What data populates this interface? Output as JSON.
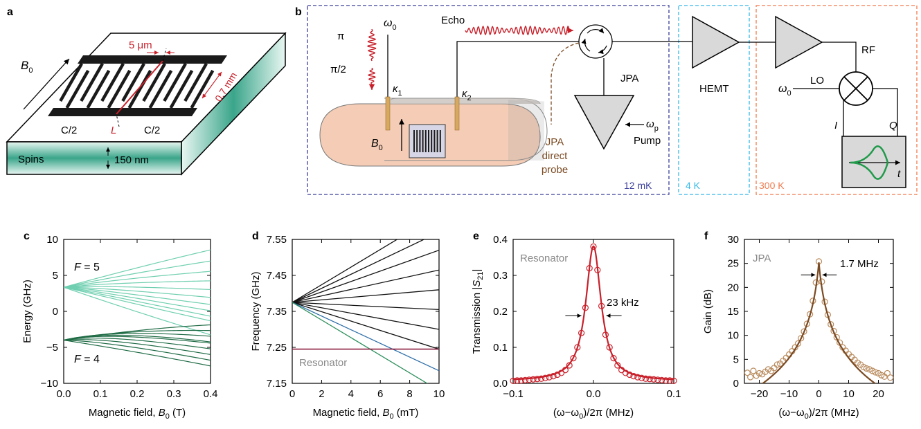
{
  "panels": {
    "a": {
      "letter": "a",
      "b0": "B",
      "b0_sub": "0",
      "gap": "5 μm",
      "length": "0.7 mm",
      "c_left": "C/2",
      "c_right": "C/2",
      "inductor": "L",
      "spins": "Spins",
      "thickness": "150 nm"
    },
    "b": {
      "letter": "b",
      "omega0": "ω",
      "omega0_sub": "0",
      "pi": "π",
      "pi_half": "π/2",
      "echo": "Echo",
      "kappa1": "κ",
      "kappa1_sub": "1",
      "kappa2": "κ",
      "kappa2_sub": "2",
      "b0": "B",
      "b0_sub": "0",
      "jpa": "JPA",
      "omega_p": "ω",
      "omega_p_sub": "p",
      "pump": "Pump",
      "jpa_direct": [
        "JPA",
        "direct",
        "probe"
      ],
      "stage_cold": "12 mK",
      "stage_4k": "4 K",
      "stage_rt": "300 K",
      "hemt": "HEMT",
      "rf": "RF",
      "lo": "LO",
      "lo_omega": "ω",
      "lo_omega_sub": "0",
      "i_label": "I",
      "q_label": "Q",
      "t_label": "t"
    }
  },
  "colors": {
    "red": "#c8202a",
    "spin_green": "#3aa58a",
    "f5_green": "#6fcfb0",
    "f4_green": "#1f6b45",
    "blue_dashed": "#3b3f9a",
    "cyan_dashed": "#35b8e6",
    "orange_dashed": "#f07b4f",
    "brown": "#7a4a22",
    "tan_marker": "#b98a5c",
    "resonator_line": "#8b1f3f",
    "blue_line": "#2e6fa8",
    "green_line": "#2e8f5c",
    "cavity_fill": "#f5cdb6",
    "gray_text": "#888888"
  },
  "chart_data": [
    {
      "panel": "c",
      "type": "line",
      "xlabel": "Magnetic field, B0 (T)",
      "ylabel": "Energy (GHz)",
      "xlim": [
        0.0,
        0.4
      ],
      "ylim": [
        -10,
        10
      ],
      "xticks": [
        "0.0",
        "0.1",
        "0.2",
        "0.3",
        "0.4"
      ],
      "yticks": [
        "10",
        "5",
        "0",
        "−5",
        "−10"
      ],
      "annotations": [
        "F = 5",
        "F = 4"
      ],
      "series": [
        {
          "group": "F = 5",
          "levels": 11,
          "x": [
            0,
            0.4
          ],
          "y0": 3.35,
          "y_end_range": [
            -2.2,
            8.9
          ]
        },
        {
          "group": "F = 4",
          "levels": 9,
          "x": [
            0,
            0.4
          ],
          "y0": -4.0,
          "y_end_range": [
            -9.0,
            -3.1
          ]
        }
      ]
    },
    {
      "panel": "d",
      "type": "line",
      "xlabel": "Magnetic field, B0 (mT)",
      "ylabel": "Frequency (GHz)",
      "xlim": [
        0,
        10
      ],
      "ylim": [
        7.15,
        7.55
      ],
      "xticks": [
        "0",
        "2",
        "4",
        "6",
        "8",
        "10"
      ],
      "yticks": [
        "7.55",
        "7.45",
        "7.35",
        "7.25",
        "7.15"
      ],
      "annotation": "Resonator",
      "resonator_y": 7.245,
      "origin": [
        0,
        7.375
      ],
      "series": [
        {
          "name": "",
          "x": [
            0,
            10
          ],
          "y": [
            7.375,
            7.62
          ]
        },
        {
          "name": "",
          "x": [
            0,
            10
          ],
          "y": [
            7.375,
            7.57
          ]
        },
        {
          "name": "",
          "x": [
            0,
            10
          ],
          "y": [
            7.375,
            7.52
          ]
        },
        {
          "name": "",
          "x": [
            0,
            10
          ],
          "y": [
            7.375,
            7.465
          ]
        },
        {
          "name": "",
          "x": [
            0,
            10
          ],
          "y": [
            7.375,
            7.41
          ]
        },
        {
          "name": "",
          "x": [
            0,
            10
          ],
          "y": [
            7.375,
            7.355
          ]
        },
        {
          "name": "",
          "x": [
            0,
            10
          ],
          "y": [
            7.375,
            7.3
          ]
        },
        {
          "name": "",
          "x": [
            0,
            10
          ],
          "y": [
            7.375,
            7.245
          ]
        },
        {
          "name": "",
          "x": [
            0,
            10
          ],
          "y": [
            7.375,
            7.185
          ]
        },
        {
          "name": "",
          "x": [
            0,
            10
          ],
          "y": [
            7.375,
            7.13
          ]
        }
      ]
    },
    {
      "panel": "e",
      "type": "scatter",
      "xlabel": "(ω−ω0)/2π (MHz)",
      "ylabel": "Transmission |S21|",
      "annotation": "Resonator",
      "linewidth": "23 kHz",
      "xlim": [
        -0.1,
        0.1
      ],
      "ylim": [
        0,
        0.4
      ],
      "xticks": [
        "−0.1",
        "0.0",
        "0.1"
      ],
      "yticks": [
        "0.4",
        "0.3",
        "0.2",
        "0.1",
        "0.0"
      ],
      "x": [
        -0.1,
        -0.095,
        -0.09,
        -0.085,
        -0.08,
        -0.075,
        -0.07,
        -0.065,
        -0.06,
        -0.055,
        -0.05,
        -0.045,
        -0.04,
        -0.035,
        -0.03,
        -0.025,
        -0.02,
        -0.015,
        -0.01,
        -0.005,
        0.0,
        0.005,
        0.01,
        0.015,
        0.02,
        0.025,
        0.03,
        0.035,
        0.04,
        0.045,
        0.05,
        0.055,
        0.06,
        0.065,
        0.07,
        0.075,
        0.08,
        0.085,
        0.09,
        0.095,
        0.1
      ],
      "y": [
        0.007,
        0.008,
        0.008,
        0.009,
        0.01,
        0.011,
        0.012,
        0.013,
        0.015,
        0.017,
        0.02,
        0.024,
        0.029,
        0.037,
        0.05,
        0.07,
        0.1,
        0.14,
        0.21,
        0.32,
        0.38,
        0.315,
        0.215,
        0.135,
        0.1,
        0.07,
        0.05,
        0.037,
        0.029,
        0.024,
        0.02,
        0.017,
        0.015,
        0.013,
        0.012,
        0.011,
        0.01,
        0.009,
        0.008,
        0.008,
        0.007
      ],
      "fit_peak": 0.375,
      "fit_hwhm": 0.0115
    },
    {
      "panel": "f",
      "type": "scatter",
      "xlabel": "(ω−ω0)/2π (MHz)",
      "ylabel": "Gain (dB)",
      "annotation": "JPA",
      "linewidth": "1.7 MHz",
      "xlim": [
        -25,
        25
      ],
      "ylim": [
        0,
        30
      ],
      "xticks": [
        "−20",
        "−10",
        "0",
        "10",
        "20"
      ],
      "yticks": [
        "30",
        "25",
        "20",
        "15",
        "10",
        "5",
        "0"
      ],
      "x": [
        -24,
        -23,
        -22,
        -21,
        -20,
        -19,
        -18,
        -17,
        -16,
        -15,
        -14,
        -13,
        -12,
        -11,
        -10,
        -9,
        -8,
        -7,
        -6,
        -5,
        -4,
        -3,
        -2,
        -1,
        0,
        1,
        2,
        3,
        4,
        5,
        6,
        7,
        8,
        9,
        10,
        11,
        12,
        13,
        14,
        15,
        16,
        17,
        18,
        19,
        20,
        21,
        22,
        23,
        24
      ],
      "y": [
        2.2,
        1.3,
        2.6,
        1.6,
        2.1,
        1.9,
        2.4,
        2.9,
        2.6,
        3.2,
        3.9,
        4.1,
        4.7,
        5.3,
        6.0,
        6.7,
        7.5,
        8.3,
        9.4,
        10.8,
        12.4,
        14.4,
        17.2,
        21.0,
        25.4,
        21.2,
        17.0,
        14.3,
        12.3,
        10.9,
        9.6,
        8.5,
        7.5,
        6.8,
        6.1,
        5.5,
        4.9,
        4.3,
        3.9,
        3.4,
        3.1,
        2.9,
        2.6,
        2.3,
        2.1,
        1.7,
        1.4,
        2.1,
        1.2
      ],
      "fit_peak": 25.2,
      "fit_hwhm": 0.85
    }
  ]
}
